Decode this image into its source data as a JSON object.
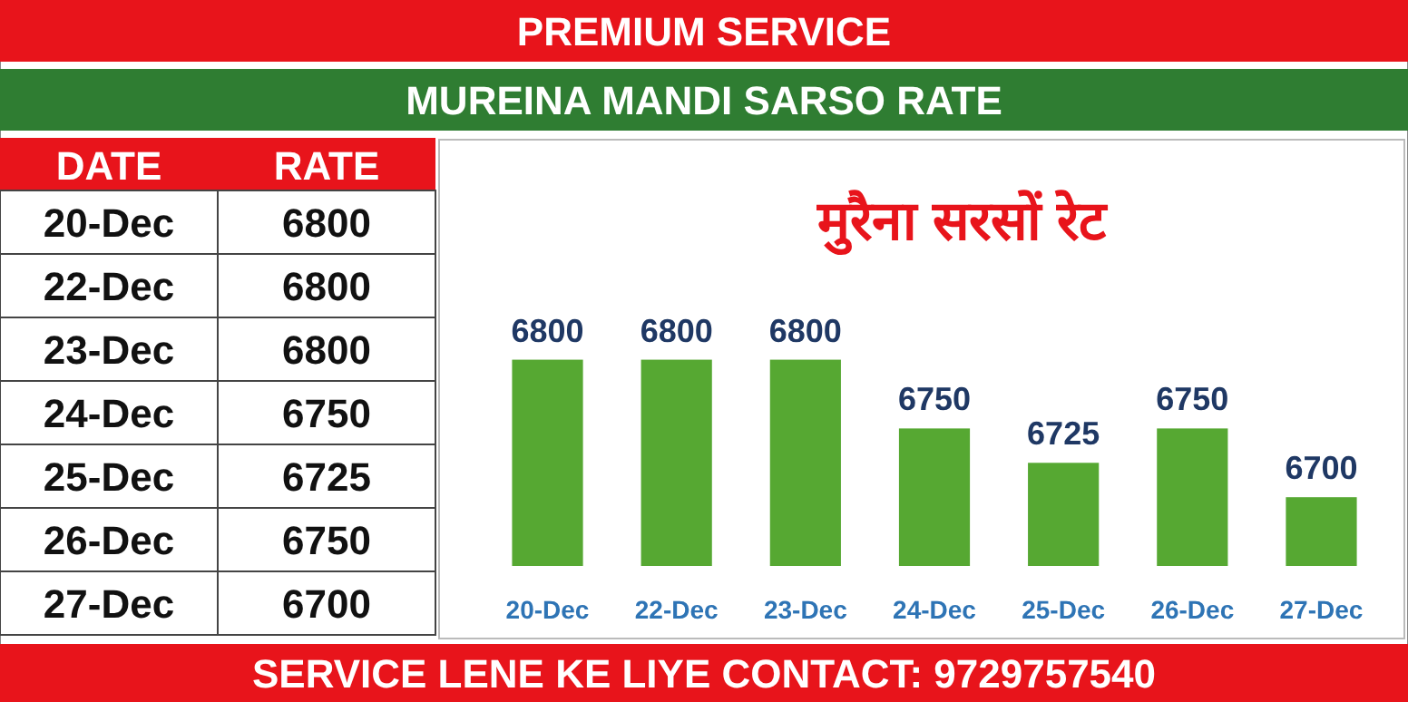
{
  "chart_data": [
    {
      "type": "other",
      "xlabel": "DATE",
      "ylabel": "RATE",
      "categories": [
        "20-Dec",
        "22-Dec",
        "23-Dec",
        "24-Dec",
        "25-Dec",
        "26-Dec",
        "27-Dec"
      ],
      "values": [
        6800,
        6800,
        6800,
        6750,
        6725,
        6750,
        6700
      ],
      "data_labels": true
    },
    {
      "type": "bar",
      "title": "मुरैना सरसों रेट",
      "subtitle": "MUREINA MANDI SARSO RATE",
      "annotations": [
        "PREMIUM SERVICE",
        "SERVICE LENE KE LIYE CONTACT: 9729757540"
      ],
      "categories": [
        "20-Dec",
        "22-Dec",
        "23-Dec",
        "24-Dec",
        "25-Dec",
        "26-Dec",
        "27-Dec"
      ],
      "values": [
        6800,
        6800,
        6800,
        6750,
        6725,
        6750,
        6700
      ],
      "color": "#56a832",
      "ylim": [
        6650,
        6960
      ],
      "tick_labels": "x",
      "data_labels": true
    }
  ]
}
